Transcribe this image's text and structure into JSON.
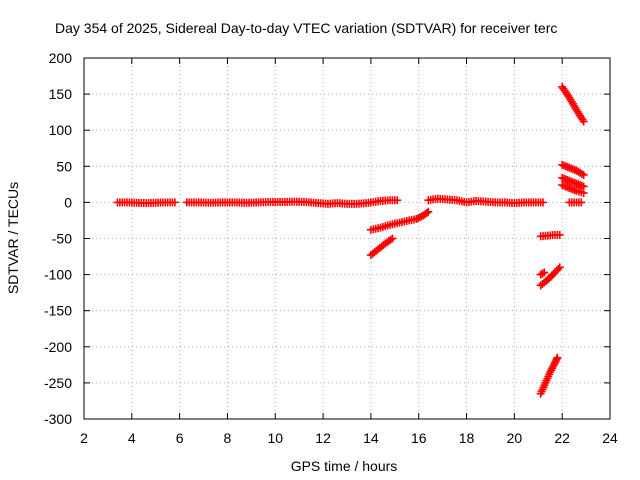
{
  "chart_data": {
    "type": "scatter",
    "title": "Day 354 of 2025, Sidereal Day-to-day VTEC variation (SDTVAR) for receiver terc",
    "xlabel": "GPS time / hours",
    "ylabel": "SDTVAR / TECUs",
    "xlim": [
      2,
      24
    ],
    "ylim": [
      -300,
      200
    ],
    "xticks": [
      2,
      4,
      6,
      8,
      10,
      12,
      14,
      16,
      18,
      20,
      22,
      24
    ],
    "yticks": [
      -300,
      -250,
      -200,
      -150,
      -100,
      -50,
      0,
      50,
      100,
      150,
      200
    ],
    "grid": true,
    "marker": "+",
    "marker_color": "#ff0000",
    "series": [
      {
        "segments": [
          [
            [
              3.4,
              0
            ],
            [
              3.8,
              0
            ],
            [
              4.2,
              -0.5
            ],
            [
              4.6,
              -1
            ],
            [
              5.0,
              -0.5
            ],
            [
              5.4,
              0
            ],
            [
              5.8,
              0
            ]
          ],
          [
            [
              6.3,
              0
            ],
            [
              6.8,
              0
            ],
            [
              7.3,
              -0.5
            ],
            [
              7.8,
              0
            ],
            [
              8.3,
              0
            ],
            [
              8.8,
              -0.5
            ],
            [
              9.3,
              0
            ],
            [
              9.8,
              0.5
            ],
            [
              10.3,
              0.5
            ],
            [
              10.8,
              1
            ],
            [
              11.3,
              0.5
            ],
            [
              11.8,
              -1
            ],
            [
              12.2,
              -2
            ],
            [
              12.6,
              -1
            ],
            [
              13.0,
              -2
            ],
            [
              13.4,
              -2
            ],
            [
              13.8,
              -1
            ],
            [
              14.0,
              0
            ],
            [
              14.4,
              2
            ],
            [
              14.8,
              3
            ],
            [
              15.1,
              3
            ]
          ],
          [
            [
              14.0,
              -38
            ],
            [
              14.4,
              -35
            ],
            [
              14.8,
              -31
            ],
            [
              15.2,
              -28
            ],
            [
              15.6,
              -25
            ],
            [
              15.9,
              -23
            ],
            [
              16.2,
              -18
            ],
            [
              16.4,
              -13
            ]
          ],
          [
            [
              14.0,
              -73
            ],
            [
              14.3,
              -65
            ],
            [
              14.6,
              -57
            ],
            [
              14.9,
              -50
            ]
          ],
          [
            [
              16.4,
              3
            ],
            [
              16.8,
              5
            ],
            [
              17.2,
              4
            ],
            [
              17.6,
              3
            ],
            [
              18.0,
              0
            ],
            [
              18.4,
              2
            ],
            [
              18.8,
              1
            ],
            [
              19.2,
              0
            ],
            [
              19.6,
              0
            ],
            [
              20.0,
              -1
            ],
            [
              20.4,
              0
            ],
            [
              20.8,
              0
            ],
            [
              21.2,
              0
            ]
          ],
          [
            [
              21.1,
              -47
            ],
            [
              21.4,
              -46
            ],
            [
              21.7,
              -45
            ],
            [
              21.9,
              -45
            ]
          ],
          [
            [
              21.1,
              -100
            ],
            [
              21.25,
              -97
            ]
          ],
          [
            [
              21.1,
              -115
            ],
            [
              21.4,
              -107
            ],
            [
              21.7,
              -97
            ],
            [
              21.9,
              -90
            ]
          ],
          [
            [
              21.1,
              -265
            ],
            [
              21.3,
              -250
            ],
            [
              21.5,
              -235
            ],
            [
              21.7,
              -222
            ],
            [
              21.8,
              -215
            ]
          ],
          [
            [
              22.0,
              160
            ],
            [
              22.3,
              145
            ],
            [
              22.6,
              128
            ],
            [
              22.9,
              112
            ]
          ],
          [
            [
              22.0,
              52
            ],
            [
              22.3,
              48
            ],
            [
              22.6,
              44
            ],
            [
              22.9,
              38
            ]
          ],
          [
            [
              22.0,
              34
            ],
            [
              22.3,
              30
            ],
            [
              22.6,
              26
            ],
            [
              22.9,
              22
            ]
          ],
          [
            [
              22.0,
              24
            ],
            [
              22.3,
              20
            ],
            [
              22.6,
              16
            ],
            [
              22.9,
              13
            ]
          ],
          [
            [
              22.3,
              0
            ],
            [
              22.6,
              0
            ],
            [
              22.8,
              0
            ]
          ]
        ]
      }
    ]
  }
}
